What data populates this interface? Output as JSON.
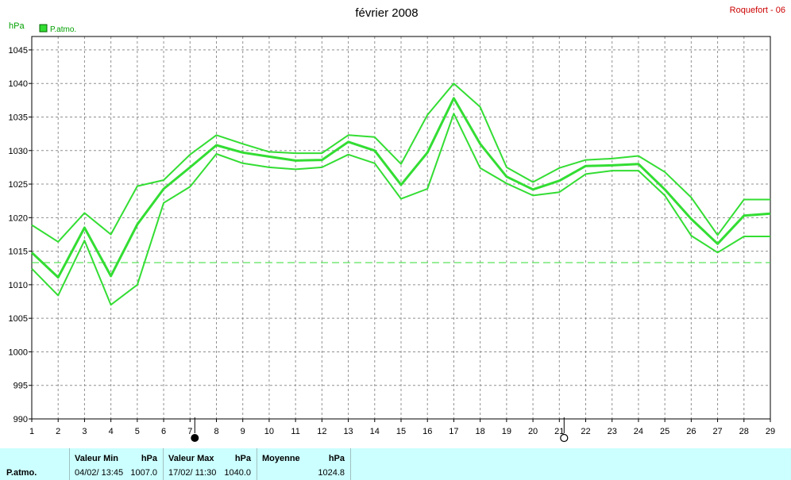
{
  "chart_data": {
    "type": "line",
    "title": "février 2008",
    "station": "Roquefort - 06",
    "unit": "hPa",
    "legend": [
      {
        "name": "P.atmo.",
        "color": "#33dd33"
      }
    ],
    "ylim": [
      990,
      1047
    ],
    "yticks": [
      990,
      995,
      1000,
      1005,
      1010,
      1015,
      1020,
      1025,
      1030,
      1035,
      1040,
      1045
    ],
    "xlim": [
      1,
      29
    ],
    "xticks": [
      1,
      2,
      3,
      4,
      5,
      6,
      7,
      8,
      9,
      10,
      11,
      12,
      13,
      14,
      15,
      16,
      17,
      18,
      19,
      20,
      21,
      22,
      23,
      24,
      25,
      26,
      27,
      28,
      29
    ],
    "grid": true,
    "reference_line": 1013.3,
    "series": [
      {
        "name": "max",
        "x": [
          1,
          2,
          3,
          4,
          5,
          6,
          7,
          8,
          9,
          10,
          11,
          12,
          13,
          14,
          15,
          16,
          17,
          18,
          19,
          20,
          21,
          22,
          23,
          24,
          25,
          26,
          27,
          28,
          29
        ],
        "values": [
          1018.9,
          1016.4,
          1020.7,
          1017.5,
          1024.7,
          1025.6,
          1029.4,
          1032.3,
          1031.0,
          1029.8,
          1029.6,
          1029.6,
          1032.3,
          1032.0,
          1028.0,
          1035.3,
          1040.0,
          1036.5,
          1027.5,
          1025.3,
          1027.4,
          1028.6,
          1028.8,
          1029.2,
          1026.8,
          1023.0,
          1017.4,
          1022.7,
          1022.7
        ]
      },
      {
        "name": "moyenne",
        "x": [
          1,
          2,
          3,
          4,
          5,
          6,
          7,
          8,
          9,
          10,
          11,
          12,
          13,
          14,
          15,
          16,
          17,
          18,
          19,
          20,
          21,
          22,
          23,
          24,
          25,
          26,
          27,
          28,
          29
        ],
        "values": [
          1014.8,
          1011.1,
          1018.5,
          1011.3,
          1019.0,
          1024.3,
          1027.5,
          1030.8,
          1029.7,
          1029.1,
          1028.5,
          1028.6,
          1031.3,
          1030.0,
          1024.9,
          1029.7,
          1037.8,
          1031.0,
          1026.1,
          1024.2,
          1025.5,
          1027.7,
          1027.8,
          1028.0,
          1024.2,
          1019.8,
          1016.1,
          1020.3,
          1020.6
        ]
      },
      {
        "name": "min",
        "x": [
          1,
          2,
          3,
          4,
          5,
          6,
          7,
          8,
          9,
          10,
          11,
          12,
          13,
          14,
          15,
          16,
          17,
          18,
          19,
          20,
          21,
          22,
          23,
          24,
          25,
          26,
          27,
          28,
          29
        ],
        "values": [
          1012.4,
          1008.4,
          1016.6,
          1007.0,
          1010.0,
          1022.2,
          1024.6,
          1029.5,
          1028.1,
          1027.5,
          1027.2,
          1027.5,
          1029.4,
          1028.1,
          1022.8,
          1024.3,
          1035.5,
          1027.4,
          1025.1,
          1023.3,
          1023.8,
          1026.5,
          1027.0,
          1027.0,
          1023.3,
          1017.3,
          1014.8,
          1017.2,
          1017.2
        ]
      }
    ],
    "moon_phases": [
      {
        "day": 7,
        "phase": "new"
      },
      {
        "day": 21,
        "phase": "full"
      }
    ]
  },
  "stats": {
    "series_label": "P.atmo.",
    "min": {
      "header": "Valeur Min",
      "unit": "hPa",
      "date": "04/02/ 13:45",
      "value": "1007.0"
    },
    "max": {
      "header": "Valeur Max",
      "unit": "hPa",
      "date": "17/02/ 11:30",
      "value": "1040.0"
    },
    "avg": {
      "header": "Moyenne",
      "unit": "hPa",
      "value": "1024.8"
    }
  }
}
